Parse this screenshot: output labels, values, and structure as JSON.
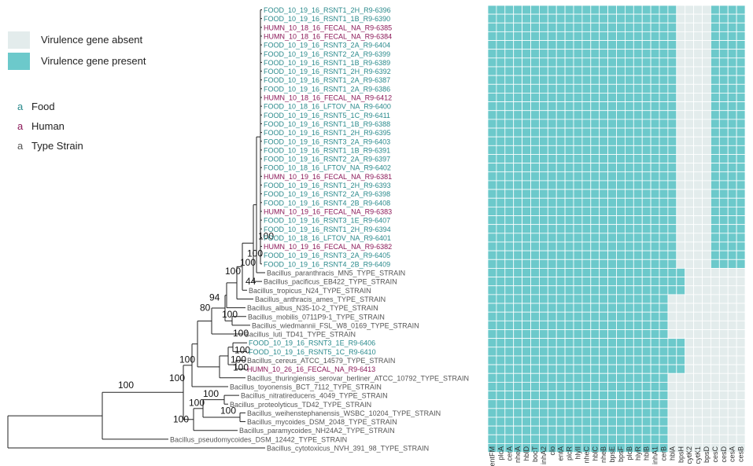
{
  "legend": {
    "absent_label": "Virulence gene absent",
    "present_label": "Virulence gene present",
    "absent_color": "#e3ecec",
    "present_color": "#6cc9cb",
    "sources": [
      {
        "letter": "a",
        "label": "Food",
        "color": "#2a8a8c"
      },
      {
        "letter": "a",
        "label": "Human",
        "color": "#8c1a5a"
      },
      {
        "letter": "a",
        "label": "Type Strain",
        "color": "#555555"
      }
    ]
  },
  "source_colors": {
    "Food": "#2a8a8c",
    "Human": "#8c1a5a",
    "Type Strain": "#555555"
  },
  "genes": [
    "entFM",
    "plcA",
    "cerA",
    "nheA",
    "hblD",
    "bocT",
    "inhA2",
    "clo",
    "entA",
    "plcR",
    "hlyII",
    "nheC",
    "hblC",
    "nheB",
    "bpsE",
    "bpsF",
    "plcB",
    "hlyR",
    "hblB",
    "inhA1",
    "cerB",
    "hblA",
    "bpsH",
    "cytK2",
    "cytK1",
    "bpsD",
    "cesC",
    "cesD",
    "cesA",
    "cesB"
  ],
  "tips": [
    {
      "label": "FOOD_10_19_16_RSNT1_2H_R9-6396",
      "source": "Food"
    },
    {
      "label": "FOOD_10_19_16_RSNT1_1B_R9-6390",
      "source": "Food"
    },
    {
      "label": "HUMN_10_18_16_FECAL_NA_R9-6385",
      "source": "Human"
    },
    {
      "label": "HUMN_10_18_16_FECAL_NA_R9-6384",
      "source": "Human"
    },
    {
      "label": "FOOD_10_19_16_RSNT3_2A_R9-6404",
      "source": "Food"
    },
    {
      "label": "FOOD_10_19_16_RSNT2_2A_R9-6399",
      "source": "Food"
    },
    {
      "label": "FOOD_10_19_16_RSNT1_1B_R9-6389",
      "source": "Food"
    },
    {
      "label": "FOOD_10_19_16_RSNT1_2H_R9-6392",
      "source": "Food"
    },
    {
      "label": "FOOD_10_19_16_RSNT1_2A_R9-6387",
      "source": "Food"
    },
    {
      "label": "FOOD_10_19_16_RSNT1_2A_R9-6386",
      "source": "Food"
    },
    {
      "label": "HUMN_10_18_16_FECAL_NA_R9-6412",
      "source": "Human"
    },
    {
      "label": "FOOD_10_18_16_LFTOV_NA_R9-6400",
      "source": "Food"
    },
    {
      "label": "FOOD_10_19_16_RSNT5_1C_R9-6411",
      "source": "Food"
    },
    {
      "label": "FOOD_10_19_16_RSNT1_1B_R9-6388",
      "source": "Food"
    },
    {
      "label": "FOOD_10_19_16_RSNT1_2H_R9-6395",
      "source": "Food"
    },
    {
      "label": "FOOD_10_19_16_RSNT3_2A_R9-6403",
      "source": "Food"
    },
    {
      "label": "FOOD_10_19_16_RSNT1_1B_R9-6391",
      "source": "Food"
    },
    {
      "label": "FOOD_10_19_16_RSNT2_2A_R9-6397",
      "source": "Food"
    },
    {
      "label": "FOOD_10_18_16_LFTOV_NA_R9-6402",
      "source": "Food"
    },
    {
      "label": "HUMN_10_19_16_FECAL_NA_R9-6381",
      "source": "Human"
    },
    {
      "label": "FOOD_10_19_16_RSNT1_2H_R9-6393",
      "source": "Food"
    },
    {
      "label": "FOOD_10_19_16_RSNT2_2A_R9-6398",
      "source": "Food"
    },
    {
      "label": "FOOD_10_19_16_RSNT4_2B_R9-6408",
      "source": "Food"
    },
    {
      "label": "HUMN_10_19_16_FECAL_NA_R9-6383",
      "source": "Human"
    },
    {
      "label": "FOOD_10_19_16_RSNT3_1E_R9-6407",
      "source": "Food"
    },
    {
      "label": "FOOD_10_19_16_RSNT1_2H_R9-6394",
      "source": "Food"
    },
    {
      "label": "FOOD_10_18_16_LFTOV_NA_R9-6401",
      "source": "Food"
    },
    {
      "label": "HUMN_10_19_16_FECAL_NA_R9-6382",
      "source": "Human"
    },
    {
      "label": "FOOD_10_19_16_RSNT3_2A_R9-6405",
      "source": "Food"
    },
    {
      "label": "FOOD_10_19_16_RSNT4_2B_R9-6409",
      "source": "Food"
    },
    {
      "label": "Bacillus_paranthracis_MN5_TYPE_STRAIN",
      "source": "Type Strain"
    },
    {
      "label": "Bacillus_pacificus_EB422_TYPE_STRAIN",
      "source": "Type Strain"
    },
    {
      "label": "Bacillus_tropicus_N24_TYPE_STRAIN",
      "source": "Type Strain"
    },
    {
      "label": "Bacillus_anthracis_ames_TYPE_STRAIN",
      "source": "Type Strain"
    },
    {
      "label": "Bacillus_albus_N35-10-2_TYPE_STRAIN",
      "source": "Type Strain"
    },
    {
      "label": "Bacillus_mobilis_0711P9-1_TYPE_STRAIN",
      "source": "Type Strain"
    },
    {
      "label": "Bacillus_wiedmannii_FSL_W8_0169_TYPE_STRAIN",
      "source": "Type Strain"
    },
    {
      "label": "Bacillus_luti_TD41_TYPE_STRAIN",
      "source": "Type Strain"
    },
    {
      "label": "FOOD_10_19_16_RSNT3_1E_R9-6406",
      "source": "Food"
    },
    {
      "label": "FOOD_10_19_16_RSNT5_1C_R9-6410",
      "source": "Food"
    },
    {
      "label": "Bacillus_cereus_ATCC_14579_TYPE_STRAIN",
      "source": "Type Strain"
    },
    {
      "label": "HUMN_10_26_16_FECAL_NA_R9-6413",
      "source": "Human"
    },
    {
      "label": "Bacillus_thuringiensis_serovar_berliner_ATCC_10792_TYPE_STRAIN",
      "source": "Type Strain"
    },
    {
      "label": "Bacillus_toyonensis_BCT_7112_TYPE_STRAIN",
      "source": "Type Strain"
    },
    {
      "label": "Bacillus_nitratireducens_4049_TYPE_STRAIN",
      "source": "Type Strain"
    },
    {
      "label": "Bacillus_proteolyticus_TD42_TYPE_STRAIN",
      "source": "Type Strain"
    },
    {
      "label": "Bacillus_weihenstephanensis_WSBC_10204_TYPE_STRAIN",
      "source": "Type Strain"
    },
    {
      "label": "Bacillus_mycoides_DSM_2048_TYPE_STRAIN",
      "source": "Type Strain"
    },
    {
      "label": "Bacillus_paramycoides_NH24A2_TYPE_STRAIN",
      "source": "Type Strain"
    },
    {
      "label": "Bacillus_pseudomycoides_DSM_12442_TYPE_STRAIN",
      "source": "Type Strain"
    },
    {
      "label": "Bacillus_cytotoxicus_NVH_391_98_TYPE_STRAIN",
      "source": "Type Strain"
    }
  ],
  "matrix": [
    "111111111111111111111100001111",
    "111111111111111111111100001111",
    "111111111111111111111100001111",
    "111111111111111111111100001111",
    "111111111111111111111100001111",
    "111111111111111111111100001111",
    "111111111111111111111100001111",
    "111111111111111111111100001111",
    "111111111111111111111100001111",
    "111111111111111111111100001111",
    "111111111111111111111100001111",
    "111111111111111111111100001111",
    "111111111111111111111100001111",
    "111111111111111111111100001111",
    "111111111111111111111100001111",
    "111111111111111111111100001111",
    "111111111111111111111100001111",
    "111111111111111111111100001111",
    "111111111111111111111100001111",
    "111111111111111111111100001111",
    "111111111111111111111100001111",
    "111111111111111111111100001111",
    "111111111111111111111100001111",
    "111111111111111111111100001111",
    "111111111111111111111100001111",
    "111111111111111111111100001111",
    "111111111111111111111100001111",
    "111111111111111111111100001111",
    "111111111111111111111100001111",
    "111111111111111111111100001111",
    "111111111111111111111110000000",
    "111111111111111111111110000000",
    "111111111111111111111110000000",
    "111111111111111111111000000000",
    "111111111111111111111000000000",
    "111111111111111111111000000000",
    "111111111111111111111000000000",
    "111111111111111111111000000000",
    "111111111111111111111110000000",
    "111111111111111111111110000000",
    "111111111111111111111110000000",
    "111111111111111111111110000000",
    "111111111111111111111000000000",
    "111111111111111111111000000000",
    "111111111111111111111000000000",
    "111111111111111111111000000000",
    "111111111111111111111000000000",
    "111111111111111111111000000000",
    "111111111111111111111000000000",
    "111111111111111111111000000000",
    "111111111111111111111000000000"
  ],
  "bootstrap_labels": [
    "100",
    "100",
    "100",
    "100",
    "44",
    "94",
    "80",
    "100",
    "100",
    "100",
    "100",
    "100",
    "100",
    "100",
    "100",
    "100",
    "100",
    "100",
    "100"
  ]
}
